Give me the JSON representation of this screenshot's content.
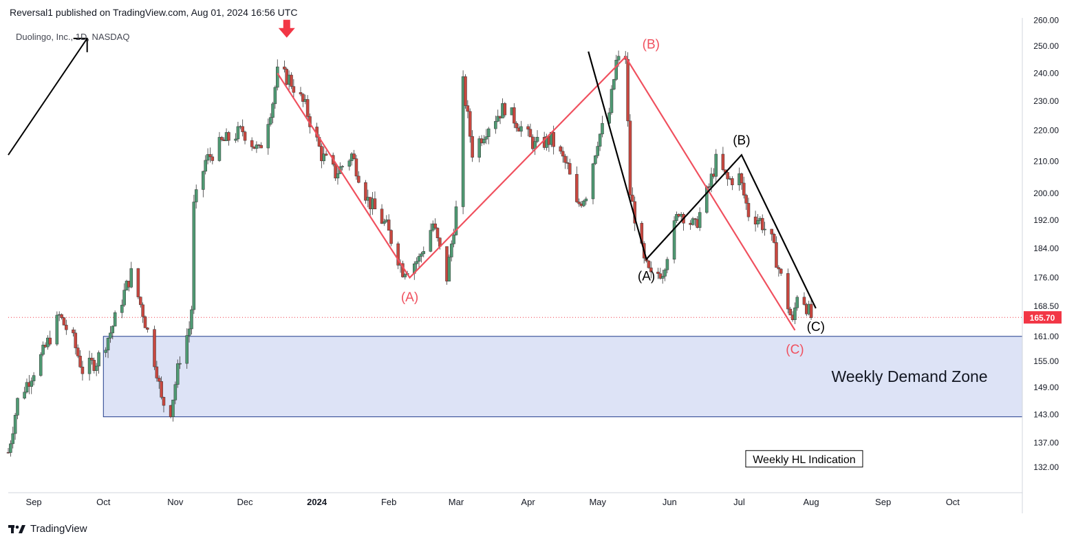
{
  "header": {
    "published_text": "Reversal1 published on TradingView.com, Aug 01, 2024 16:56 UTC"
  },
  "symbol": {
    "label": "Duolingo, Inc., 1D, NASDAQ"
  },
  "footer": {
    "brand": "TradingView"
  },
  "colors": {
    "up": "#4f9a73",
    "down": "#c9473f",
    "red_path": "#f0505e",
    "black_path": "#000000",
    "zone_fill": "#dde3f6",
    "zone_border": "#1e3a8a",
    "price_tag": "#f23645",
    "grid": "#e0e3eb"
  },
  "chart_data": {
    "type": "candlestick",
    "title": "",
    "x_start": "2023-08-21",
    "xlim": [
      "2023-08-21",
      "2024-10-31"
    ],
    "ylim": [
      127,
      261
    ],
    "y_scale": "log",
    "y_ticks": [
      "132.00",
      "137.00",
      "143.00",
      "149.00",
      "155.00",
      "161.00",
      "168.50",
      "176.00",
      "184.00",
      "192.00",
      "200.00",
      "210.00",
      "220.00",
      "230.00",
      "240.00",
      "250.00",
      "260.00"
    ],
    "x_ticks": [
      {
        "date": "2023-09-01",
        "label": "Sep",
        "bold": false
      },
      {
        "date": "2023-10-01",
        "label": "Oct",
        "bold": false
      },
      {
        "date": "2023-11-01",
        "label": "Nov",
        "bold": false
      },
      {
        "date": "2023-12-01",
        "label": "Dec",
        "bold": false
      },
      {
        "date": "2024-01-01",
        "label": "2024",
        "bold": true
      },
      {
        "date": "2024-02-01",
        "label": "Feb",
        "bold": false
      },
      {
        "date": "2024-03-01",
        "label": "Mar",
        "bold": false
      },
      {
        "date": "2024-04-01",
        "label": "Apr",
        "bold": false
      },
      {
        "date": "2024-05-01",
        "label": "May",
        "bold": false
      },
      {
        "date": "2024-06-01",
        "label": "Jun",
        "bold": false
      },
      {
        "date": "2024-07-01",
        "label": "Jul",
        "bold": false
      },
      {
        "date": "2024-08-01",
        "label": "Aug",
        "bold": false
      },
      {
        "date": "2024-09-01",
        "label": "Sep",
        "bold": false
      },
      {
        "date": "2024-10-01",
        "label": "Oct",
        "bold": false
      }
    ],
    "last_price": 165.7,
    "last_price_label": "165.70",
    "anchors": [
      {
        "date": "2023-08-21",
        "price": 135
      },
      {
        "date": "2023-08-25",
        "price": 146
      },
      {
        "date": "2023-09-05",
        "price": 157
      },
      {
        "date": "2023-09-12",
        "price": 166
      },
      {
        "date": "2023-09-18",
        "price": 160
      },
      {
        "date": "2023-09-22",
        "price": 153
      },
      {
        "date": "2023-09-28",
        "price": 155
      },
      {
        "date": "2023-10-04",
        "price": 162
      },
      {
        "date": "2023-10-10",
        "price": 172
      },
      {
        "date": "2023-10-13",
        "price": 177
      },
      {
        "date": "2023-10-18",
        "price": 167
      },
      {
        "date": "2023-10-24",
        "price": 153
      },
      {
        "date": "2023-10-26",
        "price": 146
      },
      {
        "date": "2023-10-30",
        "price": 144
      },
      {
        "date": "2023-11-03",
        "price": 156
      },
      {
        "date": "2023-11-07",
        "price": 163
      },
      {
        "date": "2023-11-08",
        "price": 168
      },
      {
        "date": "2023-11-09",
        "price": 196
      },
      {
        "date": "2023-11-14",
        "price": 210
      },
      {
        "date": "2023-11-21",
        "price": 216
      },
      {
        "date": "2023-11-30",
        "price": 220
      },
      {
        "date": "2023-12-07",
        "price": 213
      },
      {
        "date": "2023-12-13",
        "price": 230
      },
      {
        "date": "2023-12-15",
        "price": 240
      },
      {
        "date": "2023-12-20",
        "price": 238
      },
      {
        "date": "2023-12-27",
        "price": 228
      },
      {
        "date": "2024-01-03",
        "price": 212
      },
      {
        "date": "2024-01-09",
        "price": 206
      },
      {
        "date": "2024-01-16",
        "price": 212
      },
      {
        "date": "2024-01-23",
        "price": 198
      },
      {
        "date": "2024-01-31",
        "price": 190
      },
      {
        "date": "2024-02-07",
        "price": 178
      },
      {
        "date": "2024-02-14",
        "price": 181
      },
      {
        "date": "2024-02-20",
        "price": 191
      },
      {
        "date": "2024-02-26",
        "price": 176
      },
      {
        "date": "2024-03-01",
        "price": 195
      },
      {
        "date": "2024-03-04",
        "price": 236
      },
      {
        "date": "2024-03-08",
        "price": 213
      },
      {
        "date": "2024-03-15",
        "price": 222
      },
      {
        "date": "2024-03-22",
        "price": 228
      },
      {
        "date": "2024-03-28",
        "price": 222
      },
      {
        "date": "2024-04-04",
        "price": 215
      },
      {
        "date": "2024-04-11",
        "price": 217
      },
      {
        "date": "2024-04-18",
        "price": 208
      },
      {
        "date": "2024-04-22",
        "price": 196
      },
      {
        "date": "2024-04-26",
        "price": 200
      },
      {
        "date": "2024-05-01",
        "price": 217
      },
      {
        "date": "2024-05-06",
        "price": 226
      },
      {
        "date": "2024-05-09",
        "price": 244
      },
      {
        "date": "2024-05-13",
        "price": 246
      },
      {
        "date": "2024-05-15",
        "price": 200
      },
      {
        "date": "2024-05-21",
        "price": 180
      },
      {
        "date": "2024-05-24",
        "price": 176
      },
      {
        "date": "2024-05-29",
        "price": 178
      },
      {
        "date": "2024-06-05",
        "price": 195
      },
      {
        "date": "2024-06-12",
        "price": 190
      },
      {
        "date": "2024-06-18",
        "price": 202
      },
      {
        "date": "2024-06-21",
        "price": 210
      },
      {
        "date": "2024-06-26",
        "price": 204
      },
      {
        "date": "2024-07-01",
        "price": 205
      },
      {
        "date": "2024-07-05",
        "price": 194
      },
      {
        "date": "2024-07-10",
        "price": 192
      },
      {
        "date": "2024-07-15",
        "price": 186
      },
      {
        "date": "2024-07-19",
        "price": 176
      },
      {
        "date": "2024-07-24",
        "price": 164
      },
      {
        "date": "2024-07-26",
        "price": 172
      },
      {
        "date": "2024-07-29",
        "price": 170
      },
      {
        "date": "2024-08-01",
        "price": 165.7
      }
    ],
    "demand_zone": {
      "label": "Weekly Demand Zone",
      "date_start": "2023-10-01",
      "price_top": 161,
      "price_bottom": 142.5
    },
    "indicator_box": {
      "label": "Weekly HL Indication",
      "date": "2024-07-29",
      "price": 133.7
    },
    "top_left_arrow": {
      "from": [
        "2023-08-21",
        212
      ],
      "to": [
        "2023-09-24",
        253
      ]
    },
    "sell_arrow": {
      "date": "2023-12-19",
      "price": 257
    },
    "red_wave": {
      "points": [
        {
          "date": "2023-12-15",
          "price": 240
        },
        {
          "date": "2024-02-10",
          "price": 176
        },
        {
          "date": "2024-05-13",
          "price": 246
        },
        {
          "date": "2024-07-25",
          "price": 162.5
        }
      ],
      "labels": [
        {
          "text": "(A)",
          "date": "2024-02-10",
          "price": 171
        },
        {
          "text": "(B)",
          "date": "2024-05-24",
          "price": 251
        },
        {
          "text": "(C)",
          "date": "2024-07-25",
          "price": 158
        }
      ]
    },
    "black_wave": {
      "points": [
        {
          "date": "2024-04-27",
          "price": 248
        },
        {
          "date": "2024-05-22",
          "price": 181
        },
        {
          "date": "2024-07-02",
          "price": 212
        },
        {
          "date": "2024-08-03",
          "price": 168
        }
      ],
      "labels": [
        {
          "text": "(A)",
          "date": "2024-05-22",
          "price": 176.5
        },
        {
          "text": "(B)",
          "date": "2024-07-02",
          "price": 217
        },
        {
          "text": "(C)",
          "date": "2024-08-03",
          "price": 163.5
        }
      ]
    }
  }
}
